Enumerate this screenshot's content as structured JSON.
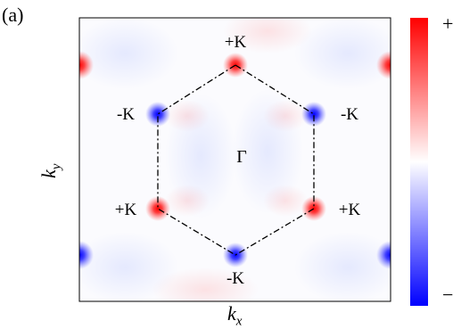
{
  "panel_label": "(a)",
  "x_axis_label_main": "k",
  "x_axis_label_sub": "x",
  "y_axis_label_main": "k",
  "y_axis_label_sub": "y",
  "center_label": "Γ",
  "colorbar": {
    "max_label": "+",
    "min_label": "−",
    "colors": [
      "#0000ff",
      "#ffffff",
      "#ff0000"
    ]
  },
  "valleys": [
    {
      "label": "+K",
      "sign": "+"
    },
    {
      "label": "-K",
      "sign": "-"
    },
    {
      "label": "+K",
      "sign": "+"
    },
    {
      "label": "-K",
      "sign": "-"
    },
    {
      "label": "+K",
      "sign": "+"
    },
    {
      "label": "-K",
      "sign": "-"
    }
  ],
  "colors": {
    "positive": "#ff0000",
    "negative": "#0000ff",
    "frame": "#000000"
  }
}
